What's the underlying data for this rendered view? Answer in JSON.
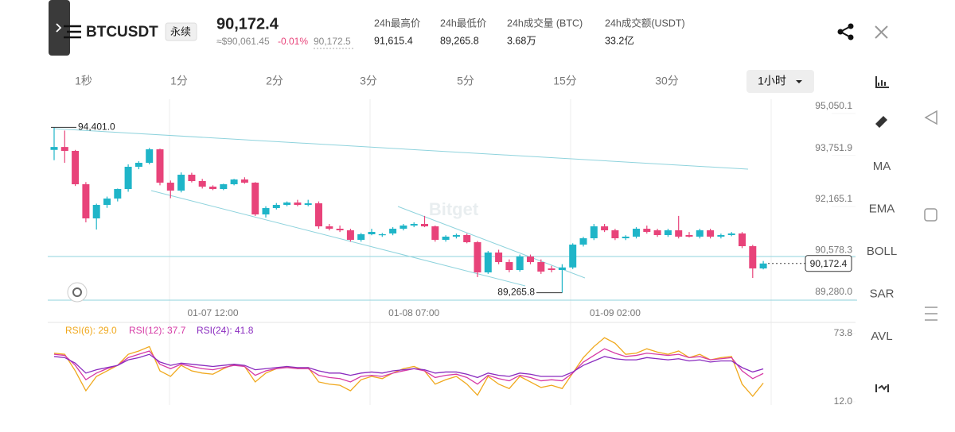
{
  "header": {
    "symbol": "BTCUSDT",
    "contract": "永续",
    "price": "90,172.4",
    "approx": "≈$90,061.45",
    "change": "-0.01%",
    "mark_price": "90,172.5",
    "stats": [
      {
        "label": "24h最高价",
        "value": "91,615.4"
      },
      {
        "label": "24h最低价",
        "value": "89,265.8"
      },
      {
        "label": "24h成交量 (BTC)",
        "value": "3.68万"
      },
      {
        "label": "24h成交额(USDT)",
        "value": "33.2亿"
      }
    ]
  },
  "tabs": [
    "1秒",
    "1分",
    "2分",
    "3分",
    "5分",
    "15分",
    "30分",
    "1小时"
  ],
  "tools": [
    "MA",
    "EMA",
    "BOLL",
    "SAR",
    "AVL"
  ],
  "watermark": "Bitget",
  "chart": {
    "type": "candlestick",
    "up_color": "#1fb5c8",
    "down_color": "#e8437a",
    "ylim": [
      89280,
      95050.1
    ],
    "yticks": [
      {
        "value": 95050.1,
        "label": "95,050.1"
      },
      {
        "value": 93751.9,
        "label": "93,751.9"
      },
      {
        "value": 92165.1,
        "label": "92,165.1"
      },
      {
        "value": 90578.3,
        "label": "90,578.3"
      },
      {
        "value": 89280,
        "label": "89,280.0"
      }
    ],
    "high_marker": {
      "value": 94401,
      "label": "94,401.0"
    },
    "low_marker": {
      "value": 89265.8,
      "label": "89,265.8"
    },
    "last_price": {
      "value": 90172.4,
      "label": "90,172.4"
    },
    "times": [
      null,
      null,
      null,
      null,
      null,
      null,
      null,
      null,
      null,
      null,
      null,
      null,
      null,
      null,
      null,
      "01-07 12:00",
      null,
      null,
      null,
      null,
      null,
      null,
      null,
      null,
      null,
      null,
      null,
      null,
      null,
      null,
      null,
      null,
      null,
      null,
      "01-08 07:00",
      null,
      null,
      null,
      null,
      null,
      null,
      null,
      null,
      null,
      null,
      null,
      null,
      null,
      null,
      null,
      null,
      null,
      null,
      "01-09 02:00",
      null,
      null,
      null,
      null,
      null,
      null,
      null,
      null,
      null,
      null,
      null,
      null,
      null,
      null
    ],
    "candles": [
      [
        93700,
        94401,
        93380,
        93790
      ],
      [
        93790,
        94300,
        93300,
        93669
      ],
      [
        93669,
        93700,
        92580,
        92633
      ],
      [
        92633,
        92700,
        91450,
        91573
      ],
      [
        91573,
        92030,
        91227,
        91992
      ],
      [
        91992,
        92250,
        91900,
        92189
      ],
      [
        92189,
        92500,
        92100,
        92485
      ],
      [
        92485,
        93250,
        92400,
        93176
      ],
      [
        93176,
        93350,
        93100,
        93299
      ],
      [
        93299,
        93760,
        93250,
        93718
      ],
      [
        93718,
        93740,
        92600,
        92682
      ],
      [
        92682,
        92750,
        92200,
        92436
      ],
      [
        92436,
        93000,
        92380,
        92929
      ],
      [
        92929,
        92990,
        92690,
        92732
      ],
      [
        92732,
        92800,
        92500,
        92559
      ],
      [
        92559,
        92600,
        92450,
        92485
      ],
      [
        92485,
        92650,
        92450,
        92633
      ],
      [
        92633,
        92800,
        92600,
        92781
      ],
      [
        92781,
        92850,
        92650,
        92682
      ],
      [
        92682,
        92700,
        91650,
        91696
      ],
      [
        91696,
        91950,
        91600,
        91893
      ],
      [
        91893,
        92050,
        91850,
        91992
      ],
      [
        91992,
        92100,
        91950,
        92066
      ],
      [
        92066,
        92150,
        91950,
        91992
      ],
      [
        91992,
        92150,
        91950,
        92041
      ],
      [
        92041,
        92100,
        91250,
        91326
      ],
      [
        91326,
        91400,
        91200,
        91252
      ],
      [
        91252,
        91350,
        91150,
        91203
      ],
      [
        91203,
        91250,
        90850,
        90907
      ],
      [
        90907,
        91120,
        90850,
        91080
      ],
      [
        91080,
        91250,
        91050,
        91154
      ],
      [
        91055,
        91120,
        91000,
        91080
      ],
      [
        91104,
        91300,
        91050,
        91252
      ],
      [
        91252,
        91400,
        91200,
        91351
      ],
      [
        91351,
        91450,
        91300,
        91400
      ],
      [
        91400,
        91650,
        91300,
        91326
      ],
      [
        91326,
        91350,
        90850,
        90907
      ],
      [
        90907,
        91050,
        90850,
        91006
      ],
      [
        91006,
        91100,
        90950,
        91055
      ],
      [
        91055,
        91100,
        90800,
        90833
      ],
      [
        90833,
        90870,
        89750,
        89896
      ],
      [
        89896,
        90560,
        89850,
        90513
      ],
      [
        90513,
        90600,
        90150,
        90216
      ],
      [
        90216,
        90300,
        89900,
        89970
      ],
      [
        89970,
        90450,
        89920,
        90389
      ],
      [
        90389,
        90450,
        90150,
        90216
      ],
      [
        90216,
        90300,
        89850,
        89921
      ],
      [
        90020,
        90100,
        89900,
        89970
      ],
      [
        89970,
        90150,
        89265.8,
        90050
      ],
      [
        90050,
        90800,
        90000,
        90759
      ],
      [
        90759,
        91000,
        90700,
        90956
      ],
      [
        90956,
        91400,
        90900,
        91326
      ],
      [
        91326,
        91400,
        91150,
        91203
      ],
      [
        91203,
        91250,
        90900,
        90956
      ],
      [
        90956,
        91050,
        90900,
        91006
      ],
      [
        91006,
        91300,
        90950,
        91252
      ],
      [
        91252,
        91350,
        91100,
        91154
      ],
      [
        91203,
        91250,
        91000,
        91055
      ],
      [
        91055,
        91250,
        91000,
        91203
      ],
      [
        91203,
        91650,
        90950,
        91006
      ],
      [
        91055,
        91150,
        90980,
        91006
      ],
      [
        91006,
        91250,
        90950,
        91203
      ],
      [
        91203,
        91250,
        90950,
        91006
      ],
      [
        91006,
        91100,
        90950,
        91055
      ],
      [
        91055,
        91150,
        91020,
        91104
      ],
      [
        91104,
        91150,
        90650,
        90710
      ],
      [
        90710,
        90750,
        89723,
        90019
      ],
      [
        90019,
        90250,
        89990,
        90172.4
      ]
    ]
  },
  "rsi": {
    "type": "line",
    "ylim": [
      12,
      73.8
    ],
    "yticks": [
      {
        "value": 73.8,
        "label": "73.8"
      },
      {
        "value": 12,
        "label": "12.0"
      }
    ],
    "series": [
      {
        "name": "RSI(6): 29.0",
        "color": "#f0a81c",
        "values": [
          56,
          55,
          40,
          22,
          35,
          40,
          45,
          55,
          58,
          62,
          40,
          35,
          45,
          40,
          38,
          37,
          42,
          46,
          44,
          30,
          38,
          42,
          44,
          42,
          43,
          30,
          28,
          27,
          22,
          32,
          35,
          33,
          38,
          42,
          44,
          40,
          28,
          32,
          35,
          28,
          18,
          35,
          28,
          24,
          35,
          30,
          25,
          27,
          24,
          38,
          52,
          62,
          70,
          65,
          55,
          56,
          60,
          57,
          55,
          58,
          52,
          55,
          50,
          52,
          53,
          28,
          17,
          29
        ]
      },
      {
        "name": "RSI(12): 37.7",
        "color": "#d63aa6",
        "values": [
          55,
          54,
          45,
          32,
          38,
          42,
          45,
          52,
          55,
          58,
          46,
          42,
          46,
          44,
          42,
          41,
          43,
          45,
          44,
          36,
          40,
          42,
          43,
          42,
          42,
          36,
          34,
          33,
          30,
          35,
          36,
          35,
          38,
          40,
          42,
          40,
          34,
          36,
          37,
          34,
          28,
          36,
          33,
          31,
          36,
          34,
          31,
          32,
          31,
          38,
          48,
          54,
          60,
          56,
          53,
          54,
          56,
          55,
          54,
          55,
          52,
          53,
          50,
          51,
          52,
          40,
          33,
          37.7
        ]
      },
      {
        "name": "RSI(24): 41.8",
        "color": "#8a2bbf",
        "values": [
          53,
          52,
          47,
          38,
          41,
          43,
          45,
          50,
          52,
          55,
          48,
          45,
          47,
          46,
          45,
          44,
          45,
          46,
          45,
          41,
          42,
          43,
          44,
          43,
          43,
          40,
          38,
          38,
          36,
          38,
          39,
          38,
          40,
          41,
          42,
          41,
          38,
          39,
          39,
          37,
          34,
          38,
          36,
          35,
          38,
          37,
          35,
          35,
          35,
          39,
          45,
          49,
          53,
          51,
          50,
          50,
          52,
          51,
          50,
          51,
          49,
          50,
          48,
          49,
          49,
          43,
          39,
          41.8
        ]
      }
    ]
  }
}
